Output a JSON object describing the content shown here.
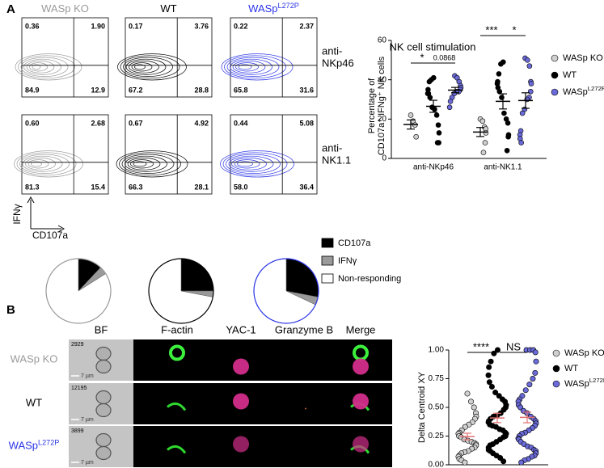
{
  "panel_a": {
    "label": "A",
    "groups": [
      {
        "name": "WASp KO",
        "color": "#9a9a9a"
      },
      {
        "name": "WT",
        "color": "#000000"
      },
      {
        "name": "WASp",
        "sup": "L272P",
        "color": "#2b35e6"
      }
    ],
    "rows": [
      [
        "anti-",
        "NKp46"
      ],
      [
        "anti-",
        "NK1.1"
      ]
    ],
    "ylabel": "IFNγ",
    "xlabel": "CD107a",
    "quadrants": [
      [
        [
          "0.36",
          "1.90",
          "84.9",
          "12.9"
        ],
        [
          "0.17",
          "3.76",
          "67.2",
          "28.8"
        ],
        [
          "0.22",
          "2.37",
          "65.8",
          "31.6"
        ]
      ],
      [
        [
          "0.60",
          "2.68",
          "81.3",
          "15.4"
        ],
        [
          "0.67",
          "4.92",
          "66.3",
          "28.1"
        ],
        [
          "0.44",
          "5.08",
          "58.0",
          "36.4"
        ]
      ]
    ]
  },
  "panel_b": {
    "label": "B",
    "channels": [
      "BF",
      "F-actin",
      "YAC-1",
      "Granzyme B",
      "Merge"
    ],
    "rows": [
      {
        "name": "WASp KO",
        "color": "#9a9a9a",
        "id": "2929"
      },
      {
        "name": "WT",
        "color": "#000000",
        "id": "12195"
      },
      {
        "name": "WASp",
        "sup": "L272P",
        "color": "#2b35e6",
        "id": "3899"
      }
    ],
    "scale": "7 µm"
  },
  "chart_data": [
    {
      "type": "strip",
      "title": "NK cell stimulation",
      "ylabel": [
        "Percentage of",
        "CD107a⁺ IFNg⁺ NK cells"
      ],
      "categories": [
        "anti-NKp46",
        "anti-NK1.1"
      ],
      "ylim": [
        0,
        60
      ],
      "yticks": [
        0,
        20,
        40,
        60
      ],
      "annotations": [
        "*",
        "0.0868",
        "***",
        "*"
      ],
      "series": [
        {
          "name": "WASp KO",
          "color": "#d0d0d0",
          "values": [
            [
              22,
              19,
              17,
              11
            ],
            [
              20,
              19,
              16,
              15,
              13,
              8,
              3
            ]
          ]
        },
        {
          "name": "WT",
          "color": "#000000",
          "values": [
            [
              41,
              40,
              39,
              35,
              33,
              33,
              31,
              26,
              25,
              22,
              17,
              13,
              8,
              8
            ],
            [
              49,
              48,
              43,
              39,
              38,
              36,
              34,
              31,
              23,
              20,
              18,
              12,
              11,
              4
            ]
          ]
        },
        {
          "name": "WASp",
          "name_sup": "L272P",
          "color": "#6a6ad8",
          "values": [
            [
              42,
              41,
              39,
              37,
              36,
              35,
              34,
              34,
              33,
              31,
              29,
              26
            ],
            [
              51,
              50,
              47,
              39,
              38,
              34,
              31,
              30,
              25,
              23,
              14,
              12,
              10,
              8
            ]
          ]
        }
      ]
    },
    {
      "type": "pie",
      "categories": [
        "CD107a",
        "IFNγ",
        "Non-responding"
      ],
      "colors": [
        "#000000",
        "#9a9a9a",
        "#ffffff"
      ],
      "border": "#9a9a9a",
      "values": [
        12,
        4,
        84
      ]
    },
    {
      "type": "pie",
      "categories": [
        "CD107a",
        "IFNγ",
        "Non-responding"
      ],
      "colors": [
        "#000000",
        "#9a9a9a",
        "#ffffff"
      ],
      "border": "#000000",
      "values": [
        25,
        3,
        72
      ]
    },
    {
      "type": "pie",
      "categories": [
        "CD107a",
        "IFNγ",
        "Non-responding"
      ],
      "colors": [
        "#000000",
        "#9a9a9a",
        "#ffffff"
      ],
      "border": "#2b35e6",
      "values": [
        28,
        4,
        68
      ]
    },
    {
      "type": "strip",
      "ylabel": "Delta Centroid XY",
      "ylim": [
        0,
        1
      ],
      "yticks": [
        {
          "value": 0,
          "label": "0.00"
        },
        {
          "value": 0.25,
          "label": "0.25"
        },
        {
          "value": 0.5,
          "label": "0.50"
        },
        {
          "value": 0.75,
          "label": "0.75"
        },
        {
          "value": 1,
          "label": "1.00"
        }
      ],
      "annotations": [
        "****",
        "NS"
      ],
      "series": [
        {
          "name": "WASp KO",
          "color": "#d0d0d0",
          "values": [
            0.62,
            0.55,
            0.5,
            0.45,
            0.42,
            0.4,
            0.37,
            0.35,
            0.33,
            0.3,
            0.28,
            0.27,
            0.25,
            0.24,
            0.22,
            0.21,
            0.2,
            0.19,
            0.18,
            0.17,
            0.15,
            0.14,
            0.12,
            0.11,
            0.1,
            0.08,
            0.07,
            0.05,
            0.04,
            0.02
          ]
        },
        {
          "name": "WT",
          "color": "#000000",
          "values": [
            1.0,
            0.97,
            0.9,
            0.85,
            0.78,
            0.72,
            0.68,
            0.63,
            0.6,
            0.57,
            0.55,
            0.52,
            0.5,
            0.48,
            0.45,
            0.43,
            0.42,
            0.4,
            0.38,
            0.37,
            0.35,
            0.34,
            0.33,
            0.31,
            0.3,
            0.28,
            0.27,
            0.25,
            0.24,
            0.22,
            0.2,
            0.18,
            0.17,
            0.15,
            0.13,
            0.12,
            0.1,
            0.08,
            0.06,
            0.03
          ]
        },
        {
          "name": "WASp",
          "name_sup": "L272P",
          "color": "#6a6ad8",
          "values": [
            1.0,
            1.0,
            1.0,
            0.98,
            0.9,
            0.8,
            0.75,
            0.7,
            0.65,
            0.6,
            0.57,
            0.55,
            0.52,
            0.5,
            0.47,
            0.45,
            0.42,
            0.4,
            0.38,
            0.36,
            0.34,
            0.32,
            0.3,
            0.28,
            0.27,
            0.25,
            0.23,
            0.22,
            0.2,
            0.18,
            0.16,
            0.15,
            0.13,
            0.12,
            0.1,
            0.08,
            0.07,
            0.05,
            0.04,
            0.02
          ]
        }
      ]
    }
  ]
}
